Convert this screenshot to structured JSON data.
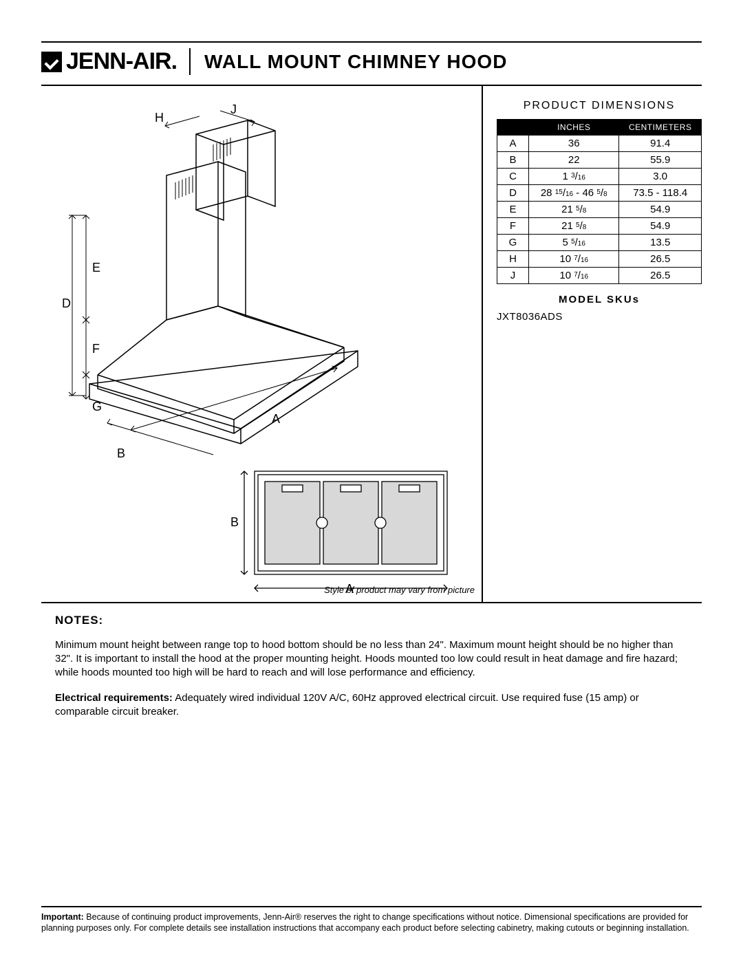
{
  "brand": "JENN-AIR.",
  "title": "WALL MOUNT CHIMNEY HOOD",
  "dim_title": "PRODUCT DIMENSIONS",
  "col_inches": "INCHES",
  "col_cm": "CENTIMETERS",
  "rows": [
    {
      "k": "A",
      "in_html": "36",
      "cm": "91.4"
    },
    {
      "k": "B",
      "in_html": "22",
      "cm": "55.9"
    },
    {
      "k": "C",
      "in_html": "1 <span class='frac-sup'>3</span>/<span class='frac-sub'>16</span>",
      "cm": "3.0"
    },
    {
      "k": "D",
      "in_html": "28 <span class='frac-sup'>15</span>/<span class='frac-sub'>16</span> - 46 <span class='frac-sup'>5</span>/<span class='frac-sub'>8</span>",
      "cm": "73.5 - 118.4"
    },
    {
      "k": "E",
      "in_html": "21 <span class='frac-sup'>5</span>/<span class='frac-sub'>8</span>",
      "cm": "54.9"
    },
    {
      "k": "F",
      "in_html": "21 <span class='frac-sup'>5</span>/<span class='frac-sub'>8</span>",
      "cm": "54.9"
    },
    {
      "k": "G",
      "in_html": "5 <span class='frac-sup'>5</span>/<span class='frac-sub'>16</span>",
      "cm": "13.5"
    },
    {
      "k": "H",
      "in_html": "10 <span class='frac-sup'>7</span>/<span class='frac-sub'>16</span>",
      "cm": "26.5"
    },
    {
      "k": "J",
      "in_html": "10 <span class='frac-sup'>7</span>/<span class='frac-sub'>16</span>",
      "cm": "26.5"
    }
  ],
  "sku_title": "MODEL SKUs",
  "sku": "JXT8036ADS",
  "disclaimer": "Style of product may vary from picture",
  "notes_title": "NOTES:",
  "notes_p1": "Minimum mount height between range top to hood bottom should be no less than 24\".  Maximum mount height should be no higher than 32\".  It is important to install the hood at the proper mounting height.  Hoods mounted too low could result in heat damage and fire hazard; while hoods mounted too high will be hard to reach and will lose performance and efficiency.",
  "notes_p2_label": "Electrical requirements:",
  "notes_p2_body": "  Adequately wired individual 120V A/C, 60Hz approved electrical circuit. Use required fuse (15 amp) or comparable circuit breaker.",
  "footer_label": "Important:",
  "footer_body": " Because of continuing product improvements, Jenn-Air® reserves the right to change specifications without notice. Dimensional specifications are provided for planning purposes only. For complete details see installation instructions that accompany each product before selecting cabinetry, making cutouts or beginning installation.",
  "labels": {
    "A": "A",
    "B": "B",
    "D": "D",
    "E": "E",
    "F": "F",
    "G": "G",
    "H": "H",
    "J": "J"
  }
}
